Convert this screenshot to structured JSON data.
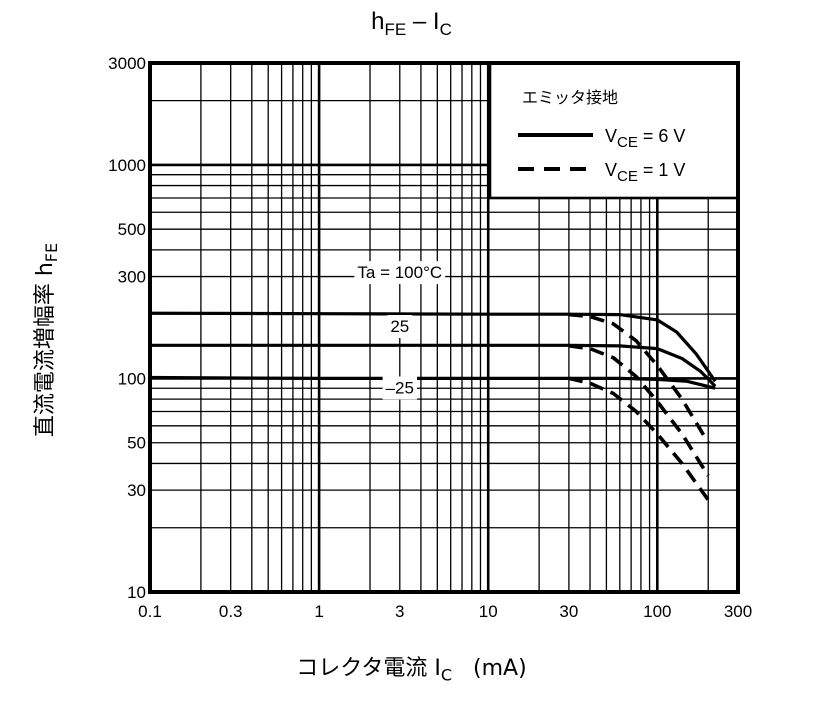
{
  "title": {
    "main": "h",
    "main_sub": "FE",
    "sep": " – I",
    "sep_sub": "C"
  },
  "ylabel": {
    "text": "直流電流増幅率 h",
    "sub": "FE"
  },
  "xlabel": {
    "text": "コレクタ電流 I",
    "sub": "C",
    "unit": "(mA)"
  },
  "legend": {
    "title": "エミッタ接地",
    "entries": [
      {
        "label": "V",
        "sub": "CE",
        "value": " = 6 V",
        "style": "solid"
      },
      {
        "label": "V",
        "sub": "CE",
        "value": " = 1 V",
        "style": "dashed"
      }
    ]
  },
  "annotations": [
    {
      "text": "Ta = 100°C",
      "x": 3,
      "y": 295
    },
    {
      "text": "25",
      "x": 3,
      "y": 165
    },
    {
      "text": "–25",
      "x": 3,
      "y": 85
    }
  ],
  "chart_data": {
    "type": "line",
    "xscale": "log",
    "yscale": "log",
    "xlim": [
      0.1,
      300
    ],
    "ylim": [
      10,
      3000
    ],
    "xticks": [
      {
        "v": 0.1,
        "label": "0.1"
      },
      {
        "v": 0.3,
        "label": "0.3"
      },
      {
        "v": 1,
        "label": "1"
      },
      {
        "v": 3,
        "label": "3"
      },
      {
        "v": 10,
        "label": "10"
      },
      {
        "v": 30,
        "label": "30"
      },
      {
        "v": 100,
        "label": "100"
      },
      {
        "v": 300,
        "label": "300"
      }
    ],
    "yticks": [
      {
        "v": 10,
        "label": "10"
      },
      {
        "v": 30,
        "label": "30"
      },
      {
        "v": 50,
        "label": "50"
      },
      {
        "v": 100,
        "label": "100"
      },
      {
        "v": 300,
        "label": "300"
      },
      {
        "v": 500,
        "label": "500"
      },
      {
        "v": 1000,
        "label": "1000"
      },
      {
        "v": 3000,
        "label": "3000"
      }
    ],
    "grid": true,
    "legend_position": "top-right",
    "series": [
      {
        "ta": "100",
        "style": "solid",
        "x": [
          0.1,
          1,
          10,
          30,
          60,
          100,
          130,
          170,
          220
        ],
        "y": [
          202,
          201,
          200,
          200,
          199,
          188,
          165,
          130,
          97
        ]
      },
      {
        "ta": "25",
        "style": "solid",
        "x": [
          0.1,
          1,
          10,
          30,
          60,
          100,
          140,
          180,
          220
        ],
        "y": [
          143,
          143,
          143,
          143,
          142,
          138,
          124,
          108,
          92
        ]
      },
      {
        "ta": "-25",
        "style": "solid",
        "x": [
          0.1,
          1,
          10,
          30,
          60,
          100,
          150,
          220
        ],
        "y": [
          101,
          100,
          100,
          100,
          100,
          99,
          97,
          90
        ]
      },
      {
        "ta": "100",
        "style": "dashed",
        "x": [
          30,
          40,
          55,
          75,
          100,
          140,
          200
        ],
        "y": [
          199,
          195,
          180,
          150,
          115,
          80,
          50
        ]
      },
      {
        "ta": "25",
        "style": "dashed",
        "x": [
          30,
          40,
          55,
          75,
          100,
          140,
          200
        ],
        "y": [
          142,
          138,
          125,
          102,
          78,
          55,
          35
        ]
      },
      {
        "ta": "-25",
        "style": "dashed",
        "x": [
          30,
          40,
          55,
          75,
          100,
          140,
          200
        ],
        "y": [
          100,
          95,
          85,
          70,
          55,
          40,
          27
        ]
      }
    ]
  }
}
